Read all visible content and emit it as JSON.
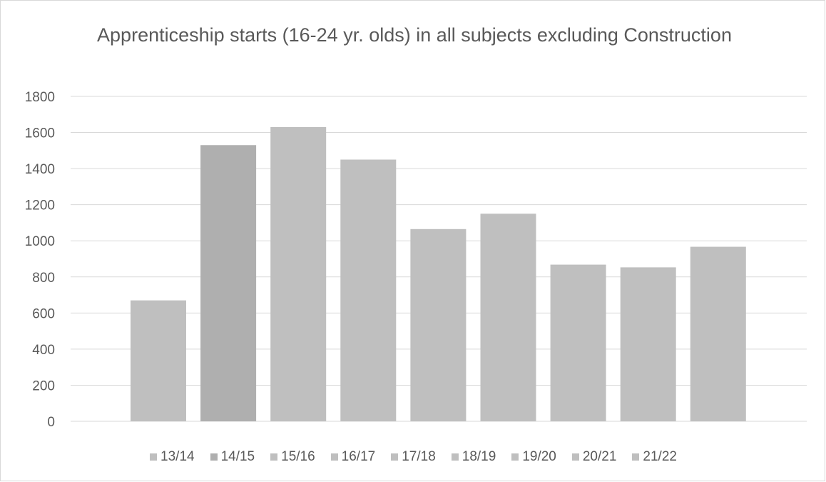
{
  "chart_data": {
    "type": "bar",
    "title": "Apprenticeship starts (16-24 yr. olds) in all subjects excluding Construction",
    "xlabel": "",
    "ylabel": "",
    "ylim": [
      0,
      1800
    ],
    "yticks": [
      0,
      200,
      400,
      600,
      800,
      1000,
      1200,
      1400,
      1600,
      1800
    ],
    "grid": true,
    "legend_position": "bottom",
    "categories": [
      "13/14",
      "14/15",
      "15/16",
      "16/17",
      "17/18",
      "18/19",
      "19/20",
      "20/21",
      "21/22"
    ],
    "values": [
      670,
      1530,
      1630,
      1450,
      1065,
      1150,
      868,
      853,
      967
    ],
    "colors": [
      "#bfbfbf",
      "#afafaf",
      "#bfbfbf",
      "#bfbfbf",
      "#bfbfbf",
      "#bfbfbf",
      "#bfbfbf",
      "#bfbfbf",
      "#bfbfbf"
    ]
  }
}
